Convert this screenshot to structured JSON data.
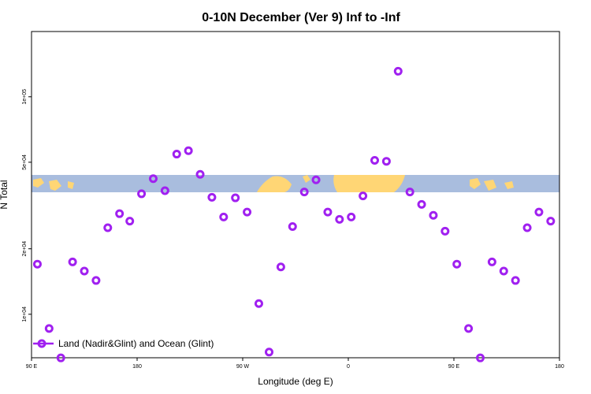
{
  "chart_data": {
    "type": "scatter",
    "title": "0-10N December (Ver 9)   Inf to -Inf",
    "xlabel": "Longitude (deg E)",
    "ylabel": "N Total",
    "xlim": [
      0,
      360
    ],
    "ylim_log10": [
      3.8,
      5.3
    ],
    "x_ticks": [
      {
        "pos": 0,
        "label": "90 E"
      },
      {
        "pos": 72,
        "label": "180"
      },
      {
        "pos": 144,
        "label": "90 W"
      },
      {
        "pos": 216,
        "label": "0"
      },
      {
        "pos": 288,
        "label": "90 E"
      },
      {
        "pos": 360,
        "label": "180"
      }
    ],
    "y_ticks": [
      {
        "value": 10000,
        "label": "1e+04"
      },
      {
        "value": 20000,
        "label": "2e+04"
      },
      {
        "value": 50000,
        "label": "5e+04"
      },
      {
        "value": 100000,
        "label": "1e+05"
      }
    ],
    "series": [
      {
        "name": "Land (Nadir&Glint) and Ocean (Glint)",
        "color": "#a020f0",
        "marker": "ring",
        "x": [
          4,
          12,
          20,
          28,
          36,
          44,
          52,
          60,
          67,
          75,
          83,
          91,
          99,
          107,
          115,
          123,
          131,
          139,
          147,
          155,
          162,
          170,
          178,
          186,
          194,
          202,
          210,
          218,
          226,
          234,
          242,
          250,
          258,
          266,
          274,
          282,
          290,
          298,
          306,
          314,
          322,
          330,
          338,
          346,
          354
        ],
        "y": [
          17000,
          8600,
          6300,
          17400,
          15800,
          14300,
          25000,
          29000,
          26800,
          35800,
          42000,
          37000,
          54500,
          56500,
          44000,
          34500,
          28000,
          34300,
          29500,
          11200,
          6700,
          16500,
          25300,
          36500,
          41500,
          29500,
          27300,
          28000,
          35000,
          51000,
          50500,
          131000,
          36500,
          32000,
          28500,
          24100,
          17000,
          8600,
          6300,
          17400,
          15800,
          14300,
          25000,
          29500,
          26800
        ]
      }
    ],
    "legend": {
      "position": "bottom-left"
    }
  },
  "map_band": {
    "ocean_color": "#a9bdde",
    "land_color": "#ffd675"
  }
}
